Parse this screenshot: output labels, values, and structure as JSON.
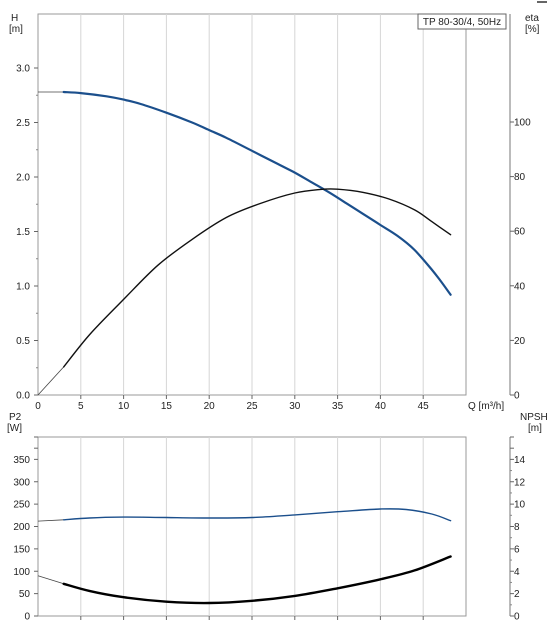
{
  "chart_data": [
    {
      "type": "line",
      "title": "TP 80-30/4, 50Hz",
      "xlabel": "Q [m³/h]",
      "ylabel_left": [
        "H",
        "[m]"
      ],
      "ylabel_right": [
        "eta",
        "[%]"
      ],
      "xlim": [
        0,
        50
      ],
      "ylim_left": [
        0,
        3.0
      ],
      "ylim_right": [
        0,
        120
      ],
      "x_ticks": [
        0,
        5,
        10,
        15,
        20,
        25,
        30,
        35,
        40,
        45
      ],
      "x_tick_labels": [
        "0",
        "5",
        "10",
        "15",
        "20",
        "25",
        "30",
        "35",
        "40",
        "45"
      ],
      "y_left_ticks": [
        0,
        0.5,
        1.0,
        1.5,
        2.0,
        2.5,
        3.0
      ],
      "y_left_tick_labels": [
        "0.0",
        "0.5",
        "1.0",
        "1.5",
        "2.0",
        "2.5",
        "3.0"
      ],
      "y_right_ticks": [
        0,
        20,
        40,
        60,
        80,
        100
      ],
      "y_right_tick_labels": [
        "0",
        "20",
        "40",
        "60",
        "80",
        "100"
      ],
      "grid": "vertical",
      "series": [
        {
          "axis": "left",
          "color": "#1b4f8c",
          "points": [
            [
              3,
              2.78
            ],
            [
              5,
              2.77
            ],
            [
              8,
              2.74
            ],
            [
              10,
              2.71
            ],
            [
              12,
              2.67
            ],
            [
              15,
              2.59
            ],
            [
              18,
              2.5
            ],
            [
              20,
              2.43
            ],
            [
              22,
              2.36
            ],
            [
              25,
              2.24
            ],
            [
              28,
              2.12
            ],
            [
              30,
              2.04
            ],
            [
              32,
              1.95
            ],
            [
              34,
              1.86
            ],
            [
              36,
              1.76
            ],
            [
              38,
              1.66
            ],
            [
              40,
              1.56
            ],
            [
              42,
              1.46
            ],
            [
              44,
              1.33
            ],
            [
              46,
              1.15
            ],
            [
              47,
              1.05
            ],
            [
              48.2,
              0.92
            ]
          ],
          "extension": [
            [
              0,
              2.78
            ],
            [
              3,
              2.78
            ]
          ]
        },
        {
          "axis": "right",
          "color": "#111111",
          "points": [
            [
              3,
              10.3
            ],
            [
              6,
              22
            ],
            [
              10,
              35
            ],
            [
              14,
              47.5
            ],
            [
              18,
              57
            ],
            [
              22,
              65
            ],
            [
              26,
              70.2
            ],
            [
              30,
              74
            ],
            [
              33,
              75.3
            ],
            [
              35,
              75.4
            ],
            [
              38,
              74.2
            ],
            [
              41,
              71.8
            ],
            [
              44,
              67.8
            ],
            [
              46,
              63.5
            ],
            [
              48.2,
              58.7
            ]
          ],
          "extension": [
            [
              0,
              0
            ],
            [
              3,
              10.3
            ]
          ]
        }
      ]
    },
    {
      "type": "line",
      "xlabel": "",
      "ylabel_left": [
        "P2",
        "[W]"
      ],
      "ylabel_right": [
        "NPSH",
        "[m]"
      ],
      "xlim": [
        0,
        50
      ],
      "ylim_left": [
        0,
        350
      ],
      "ylim_right": [
        0,
        14
      ],
      "x_ticks": [
        0,
        5,
        10,
        15,
        20,
        25,
        30,
        35,
        40,
        45
      ],
      "y_left_ticks": [
        0,
        50,
        100,
        150,
        200,
        250,
        300,
        350
      ],
      "y_left_tick_labels": [
        "0",
        "50",
        "100",
        "150",
        "200",
        "250",
        "300",
        "350"
      ],
      "y_right_ticks": [
        0,
        2,
        4,
        6,
        8,
        10,
        12,
        14
      ],
      "y_right_tick_labels": [
        "0",
        "2",
        "4",
        "6",
        "8",
        "10",
        "12",
        "14"
      ],
      "grid": "vertical",
      "series": [
        {
          "axis": "left",
          "color": "#1b4f8c",
          "points": [
            [
              3,
              215
            ],
            [
              6,
              219
            ],
            [
              10,
              221
            ],
            [
              15,
              220
            ],
            [
              20,
              219
            ],
            [
              25,
              220
            ],
            [
              30,
              226
            ],
            [
              35,
              233
            ],
            [
              40,
              239
            ],
            [
              43,
              238
            ],
            [
              46,
              228
            ],
            [
              48.2,
              213
            ]
          ],
          "extension": [
            [
              0,
              212
            ],
            [
              3,
              215
            ]
          ]
        },
        {
          "axis": "left",
          "color": "#000000",
          "points": [
            [
              3,
              72
            ],
            [
              6,
              56
            ],
            [
              10,
              42
            ],
            [
              15,
              32
            ],
            [
              20,
              29
            ],
            [
              25,
              34
            ],
            [
              30,
              45
            ],
            [
              35,
              62
            ],
            [
              40,
              82
            ],
            [
              44,
              102
            ],
            [
              48.2,
              133
            ]
          ],
          "extension": [
            [
              0,
              90
            ],
            [
              3,
              72
            ]
          ]
        }
      ]
    }
  ]
}
